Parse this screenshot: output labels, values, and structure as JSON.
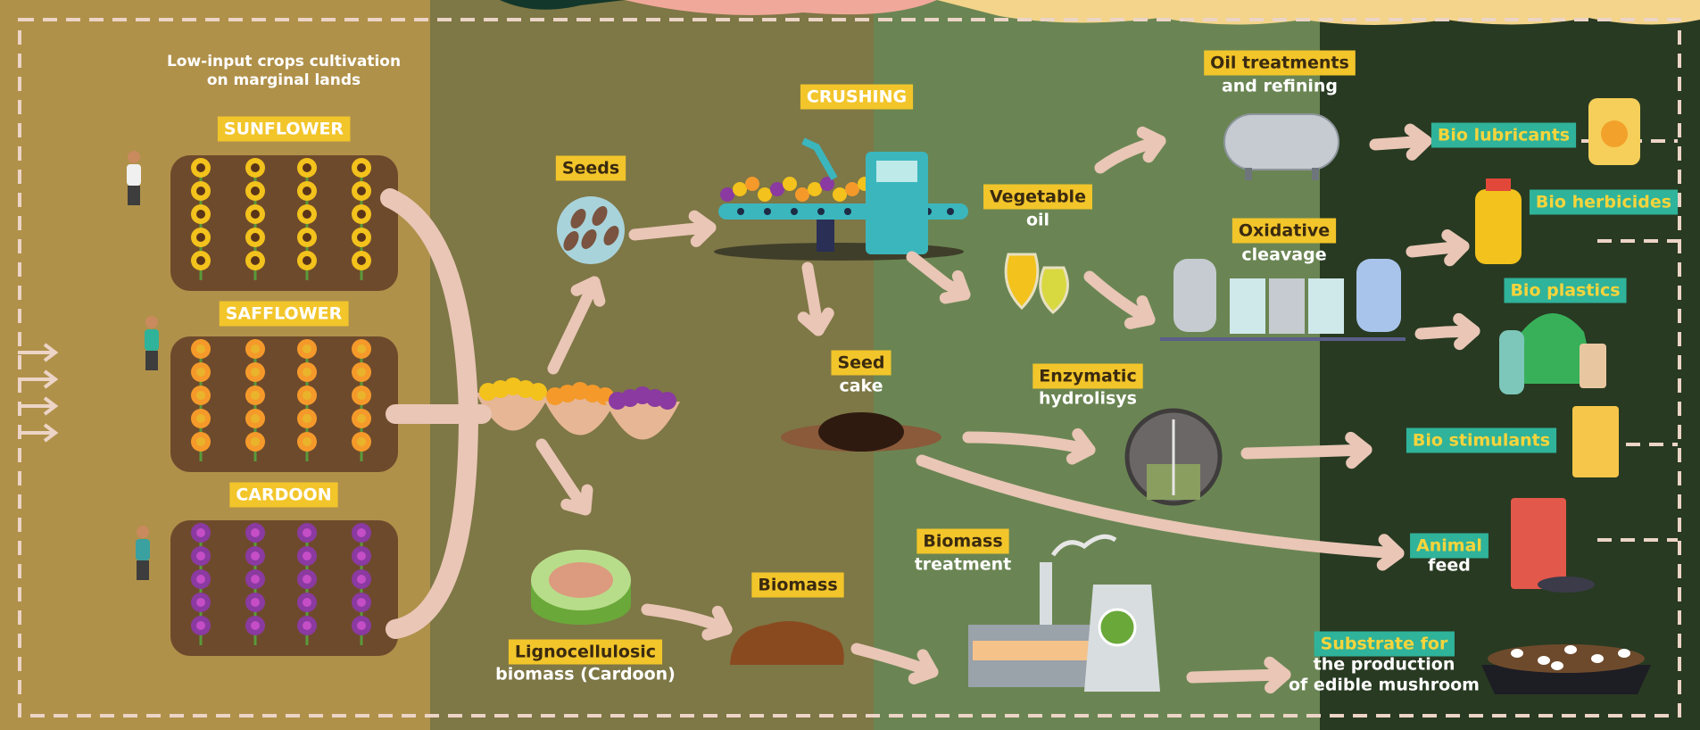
{
  "header": {
    "lines": [
      "Low-input crops cultivation",
      "on marginal lands"
    ]
  },
  "crops": [
    "SUNFLOWER",
    "SAFFLOWER",
    "CARDOON"
  ],
  "nodes": [
    {
      "label": "Seeds"
    },
    {
      "label": "CRUSHING"
    },
    {
      "label": "Vegetable",
      "lines": [
        "oil"
      ]
    },
    {
      "label": "Oil treatments",
      "lines": [
        "and refining"
      ]
    },
    {
      "label": "Oxidative",
      "lines": [
        "cleavage"
      ]
    },
    {
      "label": "Seed",
      "lines": [
        "cake"
      ]
    },
    {
      "label": "Enzymatic",
      "lines": [
        "hydrolisys"
      ]
    },
    {
      "label": "Biomass"
    },
    {
      "label": "Biomass",
      "lines": [
        "treatment"
      ]
    },
    {
      "label": "Lignocellulosic",
      "lines": [
        "biomass (Cardoon)"
      ]
    }
  ],
  "products": [
    {
      "label": "Bio lubricants"
    },
    {
      "label": "Bio herbicides"
    },
    {
      "label": "Bio plastics"
    },
    {
      "label": "Bio stimulants"
    },
    {
      "label": "Animal",
      "lines": [
        "feed"
      ]
    },
    {
      "label": "Substrate for",
      "lines": [
        "the production",
        "of edible mushroom"
      ]
    }
  ]
}
